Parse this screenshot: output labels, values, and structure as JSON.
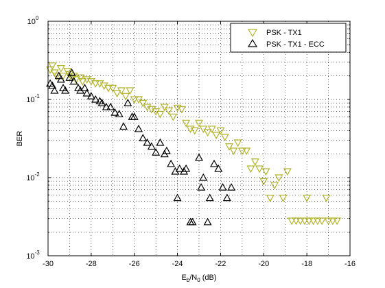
{
  "chart_data": {
    "type": "scatter",
    "xlabel": "E_b/N_0 (dB)",
    "xlabel_parts": {
      "E": "E",
      "b": "b",
      "slash": "/N",
      "zero": "0",
      "unit": " (dB)"
    },
    "ylabel": "BER",
    "xlim": [
      -30,
      -16
    ],
    "ylim": [
      0.001,
      1
    ],
    "yscale": "log",
    "grid": true,
    "legend_position": "top-right",
    "x_ticks": [
      "-30",
      "-28",
      "-26",
      "-24",
      "-22",
      "-20",
      "-18",
      "-16"
    ],
    "y_ticks": [
      {
        "base": "10",
        "exp": "-3"
      },
      {
        "base": "10",
        "exp": "-2"
      },
      {
        "base": "10",
        "exp": "-1"
      },
      {
        "base": "10",
        "exp": "0"
      }
    ],
    "series": [
      {
        "name": "PSK - TX1",
        "color": "#b3b32a",
        "marker": "triangle-down",
        "points": [
          [
            -29.9,
            0.24
          ],
          [
            -29.8,
            0.27
          ],
          [
            -29.7,
            0.22
          ],
          [
            -29.6,
            0.2
          ],
          [
            -29.4,
            0.25
          ],
          [
            -29.3,
            0.2
          ],
          [
            -29.1,
            0.23
          ],
          [
            -29.0,
            0.21
          ],
          [
            -28.9,
            0.19
          ],
          [
            -28.8,
            0.2
          ],
          [
            -28.7,
            0.18
          ],
          [
            -28.5,
            0.19
          ],
          [
            -28.4,
            0.17
          ],
          [
            -28.2,
            0.18
          ],
          [
            -28.0,
            0.17
          ],
          [
            -27.8,
            0.16
          ],
          [
            -27.6,
            0.16
          ],
          [
            -27.4,
            0.15
          ],
          [
            -27.2,
            0.14
          ],
          [
            -27.0,
            0.14
          ],
          [
            -26.8,
            0.12
          ],
          [
            -26.6,
            0.13
          ],
          [
            -26.4,
            0.11
          ],
          [
            -26.2,
            0.13
          ],
          [
            -26.0,
            0.1
          ],
          [
            -25.8,
            0.1
          ],
          [
            -25.6,
            0.09
          ],
          [
            -25.4,
            0.08
          ],
          [
            -25.2,
            0.075
          ],
          [
            -25.0,
            0.07
          ],
          [
            -24.8,
            0.065
          ],
          [
            -24.6,
            0.08
          ],
          [
            -24.4,
            0.072
          ],
          [
            -24.2,
            0.06
          ],
          [
            -24.0,
            0.078
          ],
          [
            -23.8,
            0.075
          ],
          [
            -23.6,
            0.05
          ],
          [
            -23.4,
            0.042
          ],
          [
            -23.2,
            0.04
          ],
          [
            -23.0,
            0.05
          ],
          [
            -22.8,
            0.042
          ],
          [
            -22.6,
            0.038
          ],
          [
            -22.4,
            0.042
          ],
          [
            -22.2,
            0.035
          ],
          [
            -22.0,
            0.04
          ],
          [
            -21.8,
            0.033
          ],
          [
            -21.6,
            0.025
          ],
          [
            -21.4,
            0.022
          ],
          [
            -21.2,
            0.028
          ],
          [
            -21.0,
            0.022
          ],
          [
            -20.8,
            0.022
          ],
          [
            -20.6,
            0.013
          ],
          [
            -20.4,
            0.016
          ],
          [
            -20.2,
            0.013
          ],
          [
            -20.0,
            0.009
          ],
          [
            -19.9,
            0.012
          ],
          [
            -19.7,
            0.0055
          ],
          [
            -19.5,
            0.008
          ],
          [
            -19.3,
            0.01
          ],
          [
            -19.1,
            0.0055
          ],
          [
            -18.9,
            0.012
          ],
          [
            -18.7,
            0.0028
          ],
          [
            -18.5,
            0.0028
          ],
          [
            -18.3,
            0.0028
          ],
          [
            -18.1,
            0.0028
          ],
          [
            -18.0,
            0.0055
          ],
          [
            -17.9,
            0.0028
          ],
          [
            -17.7,
            0.0028
          ],
          [
            -17.5,
            0.0028
          ],
          [
            -17.3,
            0.0028
          ],
          [
            -17.1,
            0.0055
          ],
          [
            -17.0,
            0.0028
          ],
          [
            -16.8,
            0.0028
          ],
          [
            -16.6,
            0.0028
          ]
        ]
      },
      {
        "name": "PSK - TX1 - ECC",
        "color": "#000000",
        "marker": "triangle-up",
        "points": [
          [
            -29.9,
            0.16
          ],
          [
            -29.8,
            0.15
          ],
          [
            -29.7,
            0.13
          ],
          [
            -29.5,
            0.2
          ],
          [
            -29.4,
            0.18
          ],
          [
            -29.3,
            0.14
          ],
          [
            -29.2,
            0.13
          ],
          [
            -29.0,
            0.19
          ],
          [
            -28.9,
            0.22
          ],
          [
            -28.8,
            0.17
          ],
          [
            -28.6,
            0.14
          ],
          [
            -28.5,
            0.13
          ],
          [
            -28.3,
            0.14
          ],
          [
            -28.2,
            0.12
          ],
          [
            -28.0,
            0.11
          ],
          [
            -27.8,
            0.1
          ],
          [
            -27.6,
            0.095
          ],
          [
            -27.5,
            0.09
          ],
          [
            -27.3,
            0.08
          ],
          [
            -27.1,
            0.08
          ],
          [
            -26.9,
            0.068
          ],
          [
            -26.7,
            0.065
          ],
          [
            -26.5,
            0.045
          ],
          [
            -26.3,
            0.09
          ],
          [
            -26.1,
            0.06
          ],
          [
            -26.0,
            0.06
          ],
          [
            -25.8,
            0.042
          ],
          [
            -25.6,
            0.032
          ],
          [
            -25.4,
            0.028
          ],
          [
            -25.2,
            0.025
          ],
          [
            -25.0,
            0.021
          ],
          [
            -24.8,
            0.028
          ],
          [
            -24.6,
            0.02
          ],
          [
            -24.5,
            0.022
          ],
          [
            -24.3,
            0.015
          ],
          [
            -24.1,
            0.012
          ],
          [
            -24.0,
            0.0055
          ],
          [
            -23.9,
            0.013
          ],
          [
            -23.7,
            0.012
          ],
          [
            -23.6,
            0.013
          ],
          [
            -23.4,
            0.0027
          ],
          [
            -23.3,
            0.0027
          ],
          [
            -23.0,
            0.018
          ],
          [
            -22.9,
            0.0075
          ],
          [
            -22.8,
            0.01
          ],
          [
            -22.6,
            0.0027
          ],
          [
            -22.5,
            0.0055
          ],
          [
            -22.3,
            0.015
          ],
          [
            -22.1,
            0.013
          ],
          [
            -21.9,
            0.0075
          ],
          [
            -21.7,
            0.0055
          ],
          [
            -21.5,
            0.0075
          ]
        ]
      }
    ]
  }
}
